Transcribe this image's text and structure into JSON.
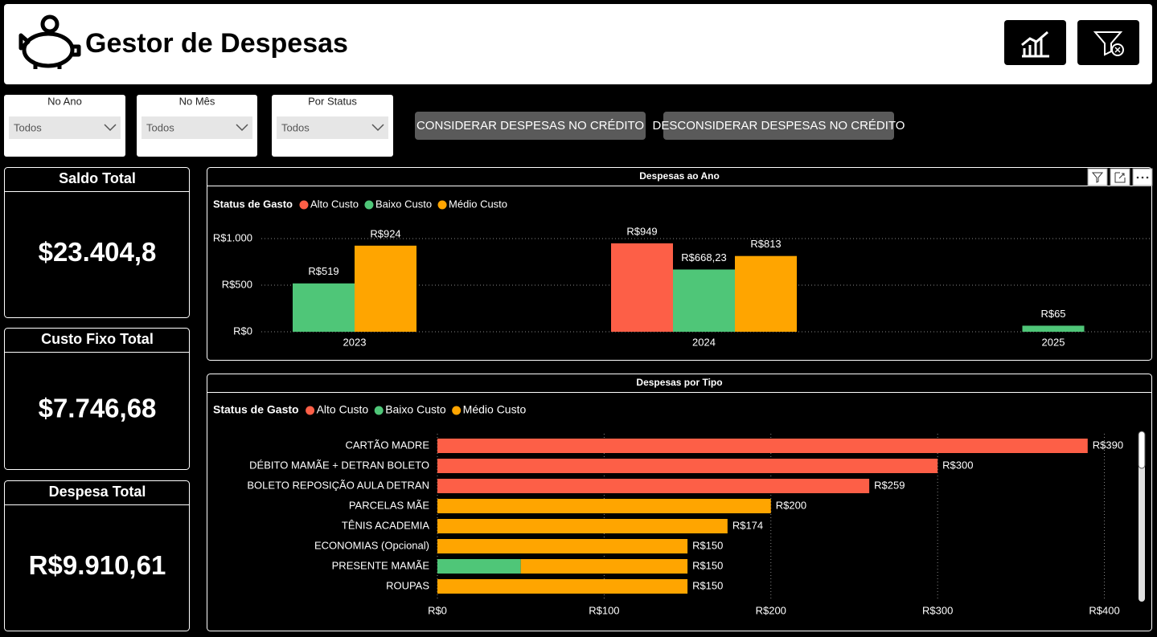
{
  "header": {
    "title": "Gestor de Despesas"
  },
  "slicers": [
    {
      "label": "No Ano",
      "value": "Todos"
    },
    {
      "label": "No Mês",
      "value": "Todos"
    },
    {
      "label": "Por Status",
      "value": "Todos"
    }
  ],
  "buttons": [
    "CONSIDERAR DESPESAS NO CRÉDITO",
    "DESCONSIDERAR DESPESAS NO CRÉDITO"
  ],
  "cards": [
    {
      "title": "Saldo Total",
      "value": "$23.404,8"
    },
    {
      "title": "Custo Fixo Total",
      "value": "$7.746,68"
    },
    {
      "title": "Despesa Total",
      "value": "R$9.910,61"
    }
  ],
  "chart_data": [
    {
      "type": "bar",
      "title": "Despesas ao Ano",
      "legend_title": "Status de Gasto",
      "categories": [
        "2023",
        "2024",
        "2025"
      ],
      "series": [
        {
          "name": "Alto Custo",
          "color": "#fd5f47",
          "values": [
            null,
            949,
            null
          ],
          "value_labels": [
            null,
            "R$949",
            null
          ]
        },
        {
          "name": "Baixo Custo",
          "color": "#4fc678",
          "values": [
            519,
            668.23,
            65
          ],
          "value_labels": [
            "R$519",
            "R$668,23",
            "R$65"
          ]
        },
        {
          "name": "Médio Custo",
          "color": "#ffa500",
          "values": [
            924,
            813,
            null
          ],
          "value_labels": [
            "R$924",
            "R$813",
            null
          ]
        }
      ],
      "ylim": [
        0,
        1150
      ],
      "yticks": [
        {
          "value": 0,
          "label": "R$0"
        },
        {
          "value": 500,
          "label": "R$500"
        },
        {
          "value": 1000,
          "label": "R$1.000"
        }
      ],
      "grid": true
    },
    {
      "type": "hbar",
      "title": "Despesas por Tipo",
      "legend_title": "Status de Gasto",
      "categories": [
        "CARTÃO MADRE",
        "DÉBITO MAMÃE + DETRAN BOLETO",
        "BOLETO REPOSIÇÃO AULA DETRAN",
        "PARCELAS MÃE",
        "TÊNIS ACADEMIA",
        "ECONOMIAS (Opcional)",
        "PRESENTE MAMÃE",
        "ROUPAS"
      ],
      "series": [
        {
          "name": "Alto Custo",
          "color": "#fd5f47",
          "values": [
            390,
            300,
            259,
            null,
            null,
            null,
            null,
            null
          ]
        },
        {
          "name": "Baixo Custo",
          "color": "#4fc678",
          "values": [
            null,
            null,
            null,
            null,
            null,
            null,
            50,
            null
          ]
        },
        {
          "name": "Médio Custo",
          "color": "#ffa500",
          "values": [
            null,
            null,
            null,
            200,
            174,
            150,
            100,
            150
          ]
        }
      ],
      "totals": [
        390,
        300,
        259,
        200,
        174,
        150,
        150,
        150
      ],
      "total_labels": [
        "R$390",
        "R$300",
        "R$259",
        "R$200",
        "R$174",
        "R$150",
        "R$150",
        "R$150"
      ],
      "xlim": [
        0,
        420
      ],
      "xticks": [
        {
          "value": 0,
          "label": "R$0"
        },
        {
          "value": 100,
          "label": "R$100"
        },
        {
          "value": 200,
          "label": "R$200"
        },
        {
          "value": 300,
          "label": "R$300"
        },
        {
          "value": 400,
          "label": "R$400"
        }
      ],
      "grid": true
    }
  ]
}
